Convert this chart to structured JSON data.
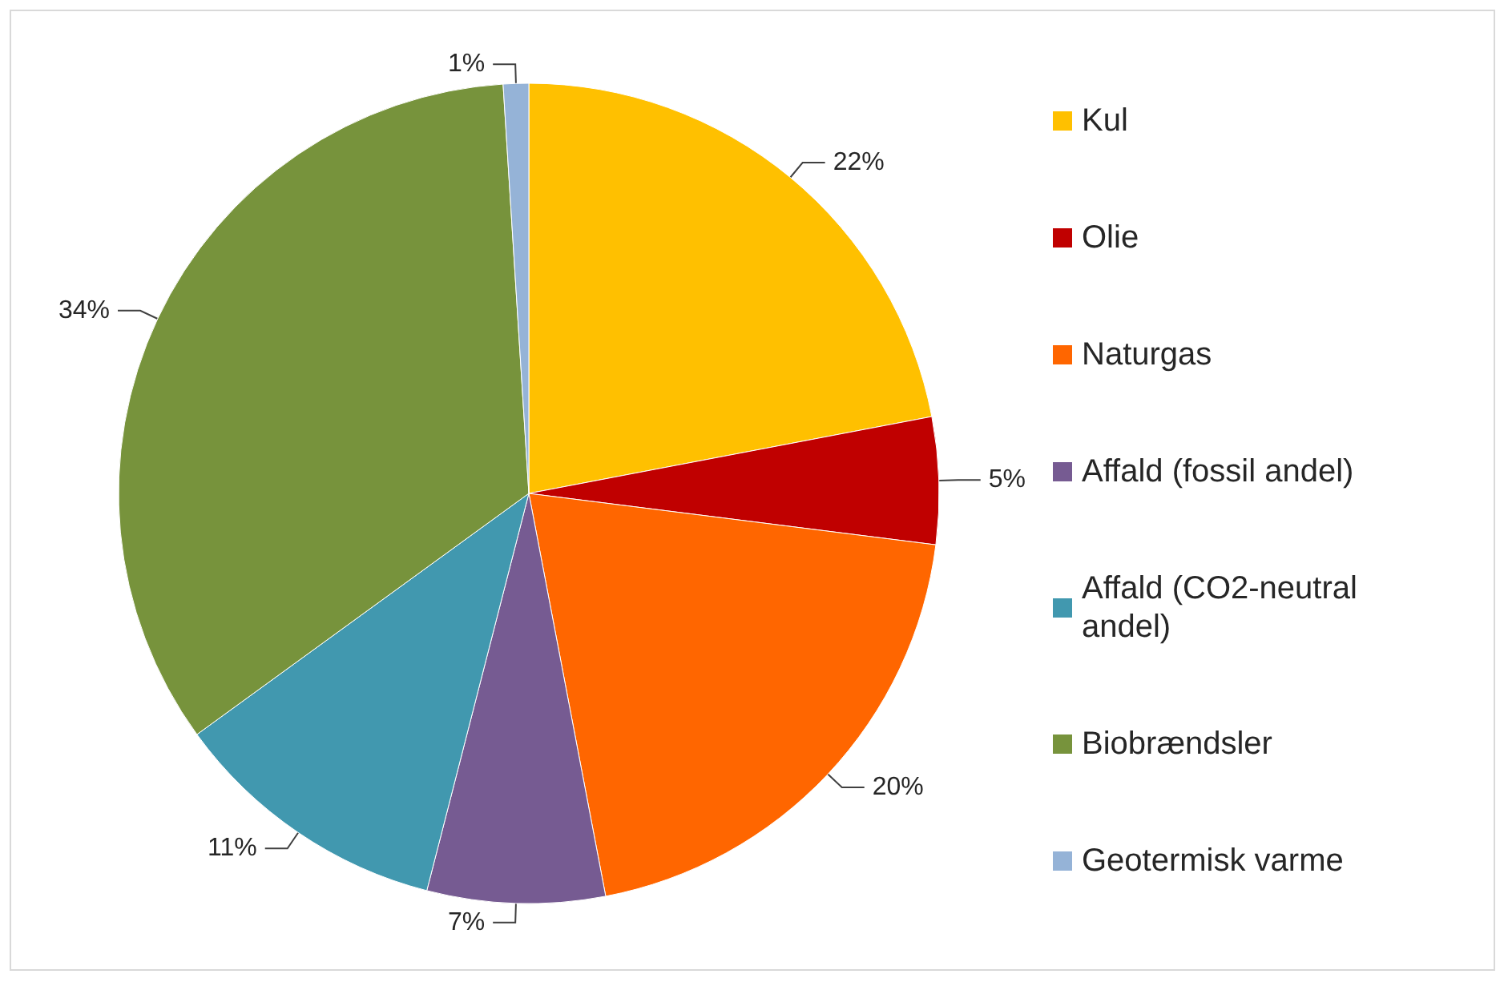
{
  "chart_data": {
    "type": "pie",
    "categories": [
      "Kul",
      "Olie",
      "Naturgas",
      "Affald (fossil andel)",
      "Affald (CO2-neutral andel)",
      "Biobrændsler",
      "Geotermisk varme"
    ],
    "values": [
      22,
      5,
      20,
      7,
      11,
      34,
      1
    ],
    "colors": [
      "#ffc000",
      "#c00000",
      "#ff6600",
      "#765b92",
      "#4198af",
      "#77933c",
      "#95b3d7"
    ],
    "value_labels": [
      "22%",
      "5%",
      "20%",
      "7%",
      "11%",
      "34%",
      "1%"
    ],
    "legend": "right"
  }
}
